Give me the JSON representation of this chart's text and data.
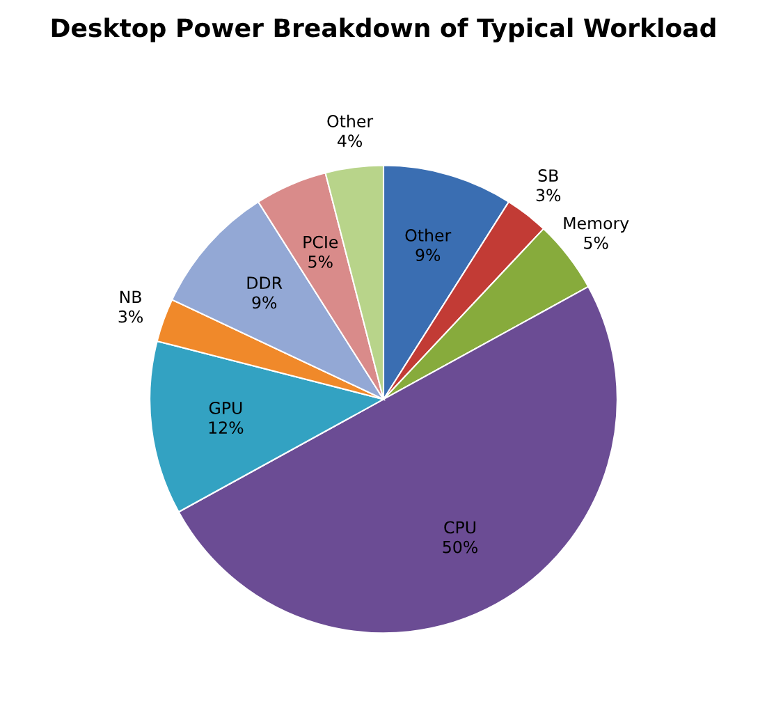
{
  "chart_data": {
    "type": "pie",
    "title": "Desktop Power Breakdown of Typical Workload",
    "categories": [
      "Other",
      "SB",
      "Memory",
      "CPU",
      "GPU",
      "NB",
      "DDR",
      "PCIe",
      "Other"
    ],
    "values": [
      9,
      3,
      5,
      50,
      12,
      3,
      9,
      5,
      4
    ],
    "value_labels": [
      "9%",
      "3%",
      "5%",
      "50%",
      "12%",
      "3%",
      "9%",
      "5%",
      "4%"
    ],
    "colors": [
      "#3a6eb2",
      "#c23b35",
      "#87ab3c",
      "#6b4c94",
      "#33a2c2",
      "#f0892a",
      "#93a8d5",
      "#d98b8a",
      "#b8d48a"
    ]
  }
}
